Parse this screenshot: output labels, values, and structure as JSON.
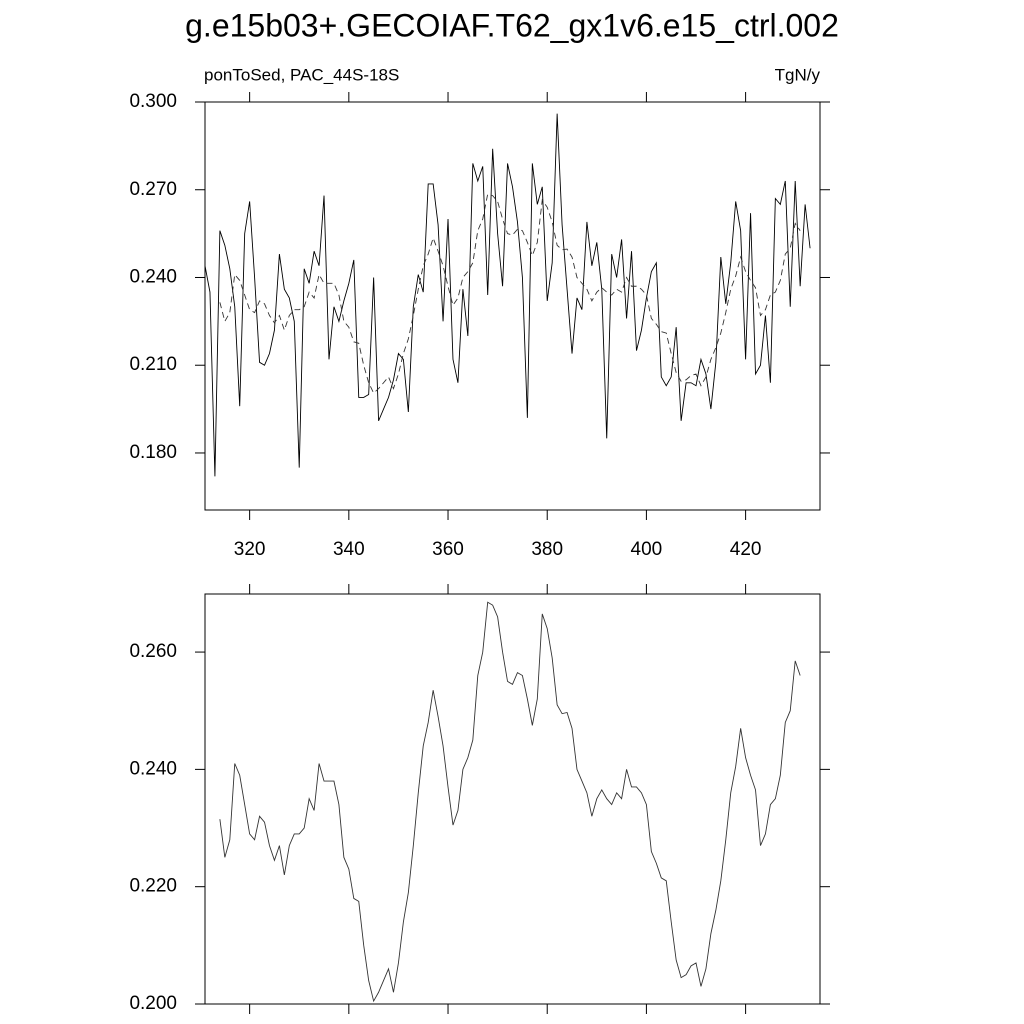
{
  "chart_data": [
    {
      "type": "line",
      "title": "g.e15b03+.GECOIAF.T62_gx1v6.e15_ctrl.002",
      "left_subtitle": "ponToSed, PAC_44S-18S",
      "right_subtitle": "TgN/y",
      "xlim": [
        311,
        435
      ],
      "xticks": [
        320,
        340,
        360,
        380,
        400,
        420
      ],
      "xticklabels": true,
      "ylim": [
        0.1605,
        0.3
      ],
      "yticks": [
        {
          "value": 0.3,
          "label": "0.300"
        },
        {
          "value": 0.27,
          "label": "0.270"
        },
        {
          "value": 0.24,
          "label": "0.240"
        },
        {
          "value": 0.21,
          "label": "0.210"
        },
        {
          "value": 0.18,
          "label": "0.180"
        }
      ],
      "series": [
        {
          "color": "#000000",
          "dash": false,
          "x": [
            311,
            312,
            313,
            314,
            315,
            316,
            317,
            318,
            319,
            320,
            321,
            322,
            323,
            324,
            325,
            326,
            327,
            328,
            329,
            330,
            331,
            332,
            333,
            334,
            335,
            336,
            337,
            338,
            339,
            340,
            341,
            342,
            343,
            344,
            345,
            346,
            347,
            348,
            349,
            350,
            351,
            352,
            353,
            354,
            355,
            356,
            357,
            358,
            359,
            360,
            361,
            362,
            363,
            364,
            365,
            366,
            367,
            368,
            369,
            370,
            371,
            372,
            373,
            374,
            375,
            376,
            377,
            378,
            379,
            380,
            381,
            382,
            383,
            384,
            385,
            386,
            387,
            388,
            389,
            390,
            391,
            392,
            393,
            394,
            395,
            396,
            397,
            398,
            399,
            400,
            401,
            402,
            403,
            404,
            405,
            406,
            407,
            408,
            409,
            410,
            411,
            412,
            413,
            414,
            415,
            416,
            417,
            418,
            419,
            420,
            421,
            422,
            423,
            424,
            425,
            426,
            427,
            428,
            429,
            430,
            431,
            432,
            433
          ],
          "values": [
            0.244,
            0.235,
            0.172,
            0.256,
            0.251,
            0.243,
            0.23,
            0.196,
            0.255,
            0.266,
            0.24,
            0.211,
            0.21,
            0.214,
            0.222,
            0.248,
            0.236,
            0.233,
            0.225,
            0.175,
            0.243,
            0.238,
            0.249,
            0.244,
            0.268,
            0.212,
            0.23,
            0.225,
            0.232,
            0.238,
            0.246,
            0.199,
            0.199,
            0.2,
            0.24,
            0.191,
            0.195,
            0.199,
            0.205,
            0.214,
            0.212,
            0.194,
            0.23,
            0.241,
            0.235,
            0.272,
            0.272,
            0.258,
            0.225,
            0.26,
            0.212,
            0.204,
            0.236,
            0.22,
            0.279,
            0.273,
            0.278,
            0.234,
            0.284,
            0.255,
            0.237,
            0.279,
            0.271,
            0.259,
            0.24,
            0.192,
            0.279,
            0.265,
            0.271,
            0.232,
            0.245,
            0.296,
            0.258,
            0.236,
            0.214,
            0.233,
            0.229,
            0.259,
            0.244,
            0.252,
            0.236,
            0.185,
            0.248,
            0.24,
            0.253,
            0.226,
            0.249,
            0.215,
            0.222,
            0.233,
            0.242,
            0.245,
            0.206,
            0.203,
            0.206,
            0.223,
            0.191,
            0.204,
            0.204,
            0.203,
            0.212,
            0.207,
            0.195,
            0.211,
            0.247,
            0.231,
            0.245,
            0.266,
            0.256,
            0.212,
            0.262,
            0.207,
            0.21,
            0.227,
            0.204,
            0.267,
            0.265,
            0.273,
            0.23,
            0.273,
            0.237,
            0.265,
            0.25
          ]
        },
        {
          "color": "#333333",
          "dash": true,
          "x": [
            314,
            315,
            316,
            317,
            318,
            319,
            320,
            321,
            322,
            323,
            324,
            325,
            326,
            327,
            328,
            329,
            330,
            331,
            332,
            333,
            334,
            335,
            336,
            337,
            338,
            339,
            340,
            341,
            342,
            343,
            344,
            345,
            346,
            347,
            348,
            349,
            350,
            351,
            352,
            353,
            354,
            355,
            356,
            357,
            358,
            359,
            360,
            361,
            362,
            363,
            364,
            365,
            366,
            367,
            368,
            369,
            370,
            371,
            372,
            373,
            374,
            375,
            376,
            377,
            378,
            379,
            380,
            381,
            382,
            383,
            384,
            385,
            386,
            387,
            388,
            389,
            390,
            391,
            392,
            393,
            394,
            395,
            396,
            397,
            398,
            399,
            400,
            401,
            402,
            403,
            404,
            405,
            406,
            407,
            408,
            409,
            410,
            411,
            412,
            413,
            414,
            415,
            416,
            417,
            418,
            419,
            420,
            421,
            422,
            423,
            424,
            425,
            426,
            427,
            428,
            429,
            430,
            431
          ],
          "values": [
            0.2315,
            0.225,
            0.228,
            0.241,
            0.239,
            0.234,
            0.229,
            0.228,
            0.232,
            0.231,
            0.227,
            0.2245,
            0.227,
            0.222,
            0.227,
            0.229,
            0.229,
            0.23,
            0.235,
            0.233,
            0.241,
            0.238,
            0.238,
            0.238,
            0.234,
            0.225,
            0.223,
            0.218,
            0.2175,
            0.21,
            0.204,
            0.2005,
            0.202,
            0.204,
            0.206,
            0.202,
            0.207,
            0.214,
            0.219,
            0.227,
            0.236,
            0.244,
            0.248,
            0.2535,
            0.249,
            0.244,
            0.237,
            0.2305,
            0.233,
            0.24,
            0.242,
            0.245,
            0.256,
            0.26,
            0.2685,
            0.268,
            0.266,
            0.26,
            0.255,
            0.2545,
            0.2565,
            0.256,
            0.252,
            0.2475,
            0.252,
            0.2665,
            0.264,
            0.259,
            0.251,
            0.2495,
            0.2497,
            0.247,
            0.24,
            0.238,
            0.236,
            0.232,
            0.235,
            0.2365,
            0.235,
            0.234,
            0.236,
            0.235,
            0.24,
            0.237,
            0.237,
            0.236,
            0.234,
            0.226,
            0.224,
            0.2215,
            0.221,
            0.214,
            0.2075,
            0.2045,
            0.205,
            0.2065,
            0.207,
            0.203,
            0.206,
            0.212,
            0.216,
            0.221,
            0.228,
            0.236,
            0.2405,
            0.247,
            0.242,
            0.239,
            0.2365,
            0.227,
            0.229,
            0.234,
            0.235,
            0.239,
            0.248,
            0.25,
            0.2585,
            0.256
          ]
        }
      ]
    },
    {
      "type": "line",
      "xlim": [
        311,
        435
      ],
      "xticks": [
        320,
        340,
        360,
        380,
        400,
        420
      ],
      "xticklabels": false,
      "ylim": [
        0.2,
        0.2699
      ],
      "yticks": [
        {
          "value": 0.26,
          "label": "0.260"
        },
        {
          "value": 0.24,
          "label": "0.240"
        },
        {
          "value": 0.22,
          "label": "0.220"
        },
        {
          "value": 0.2,
          "label": "0.200"
        }
      ],
      "series": [
        {
          "color": "#333333",
          "dash": false,
          "x": [
            314,
            315,
            316,
            317,
            318,
            319,
            320,
            321,
            322,
            323,
            324,
            325,
            326,
            327,
            328,
            329,
            330,
            331,
            332,
            333,
            334,
            335,
            336,
            337,
            338,
            339,
            340,
            341,
            342,
            343,
            344,
            345,
            346,
            347,
            348,
            349,
            350,
            351,
            352,
            353,
            354,
            355,
            356,
            357,
            358,
            359,
            360,
            361,
            362,
            363,
            364,
            365,
            366,
            367,
            368,
            369,
            370,
            371,
            372,
            373,
            374,
            375,
            376,
            377,
            378,
            379,
            380,
            381,
            382,
            383,
            384,
            385,
            386,
            387,
            388,
            389,
            390,
            391,
            392,
            393,
            394,
            395,
            396,
            397,
            398,
            399,
            400,
            401,
            402,
            403,
            404,
            405,
            406,
            407,
            408,
            409,
            410,
            411,
            412,
            413,
            414,
            415,
            416,
            417,
            418,
            419,
            420,
            421,
            422,
            423,
            424,
            425,
            426,
            427,
            428,
            429,
            430,
            431
          ],
          "values": [
            0.2315,
            0.225,
            0.228,
            0.241,
            0.239,
            0.234,
            0.229,
            0.228,
            0.232,
            0.231,
            0.227,
            0.2245,
            0.227,
            0.222,
            0.227,
            0.229,
            0.229,
            0.23,
            0.235,
            0.233,
            0.241,
            0.238,
            0.238,
            0.238,
            0.234,
            0.225,
            0.223,
            0.218,
            0.2175,
            0.21,
            0.204,
            0.2005,
            0.202,
            0.204,
            0.206,
            0.202,
            0.207,
            0.214,
            0.219,
            0.227,
            0.236,
            0.244,
            0.248,
            0.2535,
            0.249,
            0.244,
            0.237,
            0.2305,
            0.233,
            0.24,
            0.242,
            0.245,
            0.256,
            0.26,
            0.2685,
            0.268,
            0.266,
            0.26,
            0.255,
            0.2545,
            0.2565,
            0.256,
            0.252,
            0.2475,
            0.252,
            0.2665,
            0.264,
            0.259,
            0.251,
            0.2495,
            0.2497,
            0.247,
            0.24,
            0.238,
            0.236,
            0.232,
            0.235,
            0.2365,
            0.235,
            0.234,
            0.236,
            0.235,
            0.24,
            0.237,
            0.237,
            0.236,
            0.234,
            0.226,
            0.224,
            0.2215,
            0.221,
            0.214,
            0.2075,
            0.2045,
            0.205,
            0.2065,
            0.207,
            0.203,
            0.206,
            0.212,
            0.216,
            0.221,
            0.228,
            0.236,
            0.2405,
            0.247,
            0.242,
            0.239,
            0.2365,
            0.227,
            0.229,
            0.234,
            0.235,
            0.239,
            0.248,
            0.25,
            0.2585,
            0.256
          ]
        }
      ]
    }
  ]
}
